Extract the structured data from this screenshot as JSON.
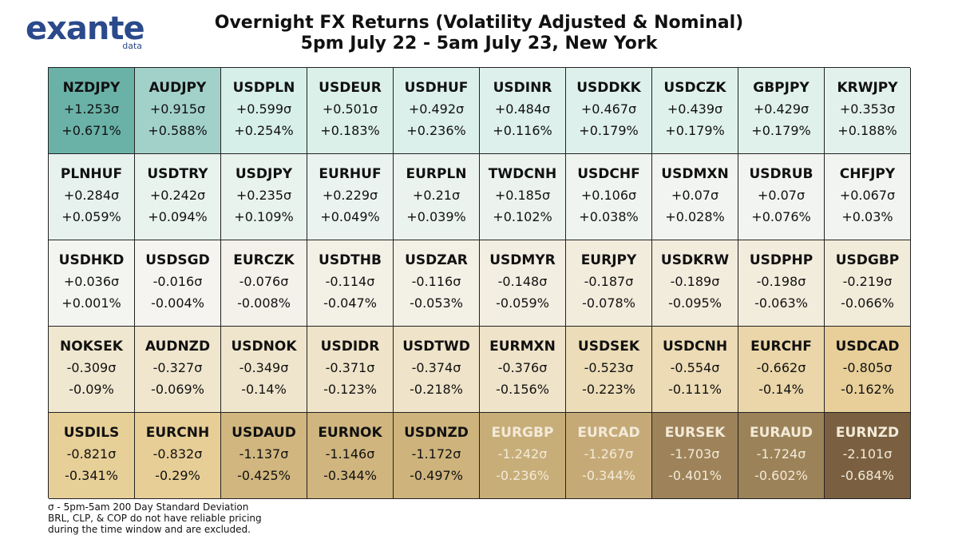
{
  "logo": {
    "main": "exante",
    "sub": "data"
  },
  "header": {
    "title_line1": "Overnight FX Returns (Volatility Adjusted & Nominal)",
    "title_line2": "5pm July 22 - 5am July 23, New York"
  },
  "footnote": {
    "line1": "σ - 5pm-5am 200 Day Standard Deviation",
    "line2": "BRL, CLP, & COP do not have reliable pricing",
    "line3": "during the time window and are excluded."
  },
  "colors": {
    "strong_positive": "#6ab2a8",
    "positive": "#d7efe9",
    "neutral": "#f5f5f2",
    "negative": "#e6cb8f",
    "strong_negative": "#7a6040"
  },
  "chart_data": {
    "type": "heatmap",
    "title": "Overnight FX Returns (Volatility Adjusted & Nominal)",
    "rows": 5,
    "cols": 10,
    "cells": [
      {
        "pair": "NZDJPY",
        "sigma": "+1.253σ",
        "pct": "+0.671%",
        "z": 1.253
      },
      {
        "pair": "AUDJPY",
        "sigma": "+0.915σ",
        "pct": "+0.588%",
        "z": 0.915
      },
      {
        "pair": "USDPLN",
        "sigma": "+0.599σ",
        "pct": "+0.254%",
        "z": 0.599
      },
      {
        "pair": "USDEUR",
        "sigma": "+0.501σ",
        "pct": "+0.183%",
        "z": 0.501
      },
      {
        "pair": "USDHUF",
        "sigma": "+0.492σ",
        "pct": "+0.236%",
        "z": 0.492
      },
      {
        "pair": "USDINR",
        "sigma": "+0.484σ",
        "pct": "+0.116%",
        "z": 0.484
      },
      {
        "pair": "USDDKK",
        "sigma": "+0.467σ",
        "pct": "+0.179%",
        "z": 0.467
      },
      {
        "pair": "USDCZK",
        "sigma": "+0.439σ",
        "pct": "+0.179%",
        "z": 0.439
      },
      {
        "pair": "GBPJPY",
        "sigma": "+0.429σ",
        "pct": "+0.179%",
        "z": 0.429
      },
      {
        "pair": "KRWJPY",
        "sigma": "+0.353σ",
        "pct": "+0.188%",
        "z": 0.353
      },
      {
        "pair": "PLNHUF",
        "sigma": "+0.284σ",
        "pct": "+0.059%",
        "z": 0.284
      },
      {
        "pair": "USDTRY",
        "sigma": "+0.242σ",
        "pct": "+0.094%",
        "z": 0.242
      },
      {
        "pair": "USDJPY",
        "sigma": "+0.235σ",
        "pct": "+0.109%",
        "z": 0.235
      },
      {
        "pair": "EURHUF",
        "sigma": "+0.229σ",
        "pct": "+0.049%",
        "z": 0.229
      },
      {
        "pair": "EURPLN",
        "sigma": "+0.21σ",
        "pct": "+0.039%",
        "z": 0.21
      },
      {
        "pair": "TWDCNH",
        "sigma": "+0.185σ",
        "pct": "+0.102%",
        "z": 0.185
      },
      {
        "pair": "USDCHF",
        "sigma": "+0.106σ",
        "pct": "+0.038%",
        "z": 0.106
      },
      {
        "pair": "USDMXN",
        "sigma": "+0.07σ",
        "pct": "+0.028%",
        "z": 0.07
      },
      {
        "pair": "USDRUB",
        "sigma": "+0.07σ",
        "pct": "+0.076%",
        "z": 0.07
      },
      {
        "pair": "CHFJPY",
        "sigma": "+0.067σ",
        "pct": "+0.03%",
        "z": 0.067
      },
      {
        "pair": "USDHKD",
        "sigma": "+0.036σ",
        "pct": "+0.001%",
        "z": 0.036
      },
      {
        "pair": "USDSGD",
        "sigma": "-0.016σ",
        "pct": "-0.004%",
        "z": -0.016
      },
      {
        "pair": "EURCZK",
        "sigma": "-0.076σ",
        "pct": "-0.008%",
        "z": -0.076
      },
      {
        "pair": "USDTHB",
        "sigma": "-0.114σ",
        "pct": "-0.047%",
        "z": -0.114
      },
      {
        "pair": "USDZAR",
        "sigma": "-0.116σ",
        "pct": "-0.053%",
        "z": -0.116
      },
      {
        "pair": "USDMYR",
        "sigma": "-0.148σ",
        "pct": "-0.059%",
        "z": -0.148
      },
      {
        "pair": "EURJPY",
        "sigma": "-0.187σ",
        "pct": "-0.078%",
        "z": -0.187
      },
      {
        "pair": "USDKRW",
        "sigma": "-0.189σ",
        "pct": "-0.095%",
        "z": -0.189
      },
      {
        "pair": "USDPHP",
        "sigma": "-0.198σ",
        "pct": "-0.063%",
        "z": -0.198
      },
      {
        "pair": "USDGBP",
        "sigma": "-0.219σ",
        "pct": "-0.066%",
        "z": -0.219
      },
      {
        "pair": "NOKSEK",
        "sigma": "-0.309σ",
        "pct": "-0.09%",
        "z": -0.309
      },
      {
        "pair": "AUDNZD",
        "sigma": "-0.327σ",
        "pct": "-0.069%",
        "z": -0.327
      },
      {
        "pair": "USDNOK",
        "sigma": "-0.349σ",
        "pct": "-0.14%",
        "z": -0.349
      },
      {
        "pair": "USDIDR",
        "sigma": "-0.371σ",
        "pct": "-0.123%",
        "z": -0.371
      },
      {
        "pair": "USDTWD",
        "sigma": "-0.374σ",
        "pct": "-0.218%",
        "z": -0.374
      },
      {
        "pair": "EURMXN",
        "sigma": "-0.376σ",
        "pct": "-0.156%",
        "z": -0.376
      },
      {
        "pair": "USDSEK",
        "sigma": "-0.523σ",
        "pct": "-0.223%",
        "z": -0.523
      },
      {
        "pair": "USDCNH",
        "sigma": "-0.554σ",
        "pct": "-0.111%",
        "z": -0.554
      },
      {
        "pair": "EURCHF",
        "sigma": "-0.662σ",
        "pct": "-0.14%",
        "z": -0.662
      },
      {
        "pair": "USDCAD",
        "sigma": "-0.805σ",
        "pct": "-0.162%",
        "z": -0.805
      },
      {
        "pair": "USDILS",
        "sigma": "-0.821σ",
        "pct": "-0.341%",
        "z": -0.821
      },
      {
        "pair": "EURCNH",
        "sigma": "-0.832σ",
        "pct": "-0.29%",
        "z": -0.832
      },
      {
        "pair": "USDAUD",
        "sigma": "-1.137σ",
        "pct": "-0.425%",
        "z": -1.137
      },
      {
        "pair": "EURNOK",
        "sigma": "-1.146σ",
        "pct": "-0.344%",
        "z": -1.146
      },
      {
        "pair": "USDNZD",
        "sigma": "-1.172σ",
        "pct": "-0.497%",
        "z": -1.172
      },
      {
        "pair": "EURGBP",
        "sigma": "-1.242σ",
        "pct": "-0.236%",
        "z": -1.242
      },
      {
        "pair": "EURCAD",
        "sigma": "-1.267σ",
        "pct": "-0.344%",
        "z": -1.267
      },
      {
        "pair": "EURSEK",
        "sigma": "-1.703σ",
        "pct": "-0.401%",
        "z": -1.703
      },
      {
        "pair": "EURAUD",
        "sigma": "-1.724σ",
        "pct": "-0.602%",
        "z": -1.724
      },
      {
        "pair": "EURNZD",
        "sigma": "-2.101σ",
        "pct": "-0.684%",
        "z": -2.101
      }
    ]
  }
}
